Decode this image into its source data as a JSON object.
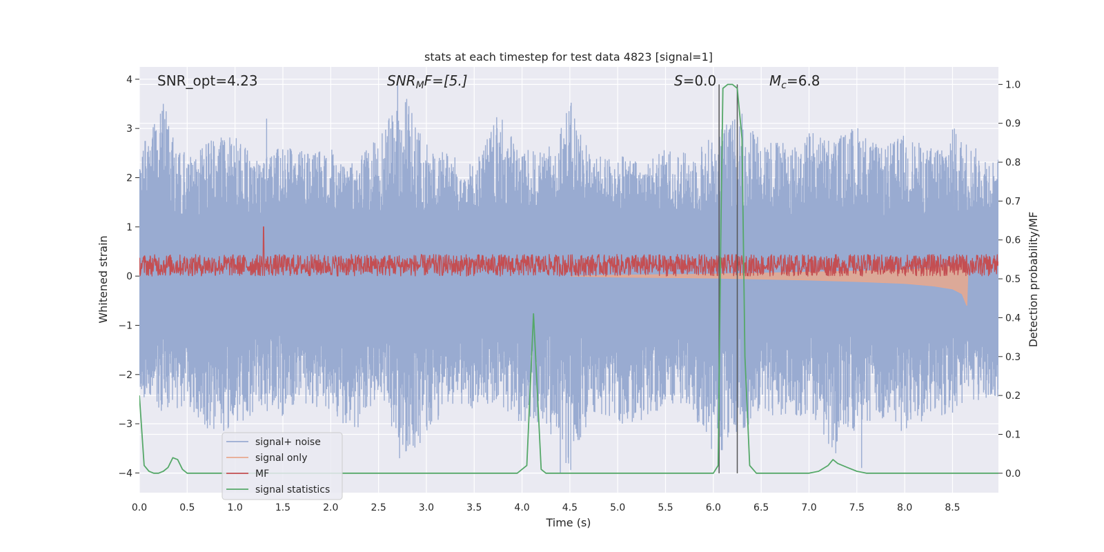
{
  "chart_data": {
    "type": "line",
    "title": "stats at each timestep for test data 4823 [signal=1]",
    "xlabel": "Time (s)",
    "ylabel": "Whitened strain",
    "ylabel_right": "Detection probability/MF",
    "xlim": [
      0.0,
      8.98
    ],
    "ylim": [
      -4.4,
      4.25
    ],
    "ylim_right": [
      -0.05,
      1.045
    ],
    "xticks": [
      "0.0",
      "0.5",
      "1.0",
      "1.5",
      "2.0",
      "2.5",
      "3.0",
      "3.5",
      "4.0",
      "4.5",
      "5.0",
      "5.5",
      "6.0",
      "6.5",
      "7.0",
      "7.5",
      "8.0",
      "8.5"
    ],
    "yticks": [
      "4",
      "3",
      "2",
      "1",
      "0",
      "−1",
      "−2",
      "−3",
      "−4"
    ],
    "yticks_right": [
      "1.0",
      "0.9",
      "0.8",
      "0.7",
      "0.6",
      "0.5",
      "0.4",
      "0.3",
      "0.2",
      "0.1",
      "0.0"
    ],
    "grid": true,
    "legend_position": "lower-left",
    "annotations": {
      "snr_opt": "SNR_opt=4.23",
      "snr_mf_base": "SNR",
      "snr_mf_sub": "M",
      "snr_mf_rest": "F=[5.]",
      "s_italic": "S",
      "s_rest": "=0.0",
      "mc_italic": "M",
      "mc_sub": "c",
      "mc_rest": "=6.8"
    },
    "vlines": [
      6.06,
      6.25
    ],
    "series": [
      {
        "name": "signal+ noise",
        "color": "#99abd1",
        "envelope_x": [
          0.0,
          0.25,
          0.5,
          0.75,
          1.0,
          1.25,
          1.5,
          1.75,
          2.0,
          2.25,
          2.5,
          2.75,
          3.0,
          3.25,
          3.5,
          3.75,
          4.0,
          4.25,
          4.5,
          4.75,
          5.0,
          5.25,
          5.5,
          5.75,
          6.0,
          6.25,
          6.5,
          6.75,
          7.0,
          7.25,
          7.5,
          7.75,
          8.0,
          8.25,
          8.5,
          8.75,
          8.98
        ],
        "envelope_upper": [
          2.6,
          3.5,
          2.4,
          2.8,
          2.9,
          2.3,
          2.7,
          2.5,
          2.6,
          2.4,
          2.8,
          3.8,
          2.7,
          2.5,
          2.3,
          3.3,
          2.6,
          2.5,
          3.6,
          2.4,
          2.5,
          2.3,
          2.6,
          2.5,
          2.9,
          3.3,
          2.9,
          2.7,
          3.0,
          2.8,
          3.1,
          2.6,
          2.9,
          2.6,
          3.0,
          2.6,
          2.4
        ],
        "envelope_lower": [
          -2.4,
          -2.8,
          -2.6,
          -3.2,
          -3.1,
          -2.7,
          -2.9,
          -2.6,
          -2.8,
          -3.2,
          -2.4,
          -3.7,
          -3.3,
          -2.6,
          -2.7,
          -2.6,
          -3.0,
          -3.1,
          -4.0,
          -2.8,
          -3.0,
          -3.0,
          -2.6,
          -2.6,
          -3.7,
          -3.3,
          -2.7,
          -3.0,
          -2.8,
          -3.6,
          -3.1,
          -3.0,
          -3.2,
          -2.9,
          -2.8,
          -2.6,
          -2.5
        ],
        "spikes": [
          [
            0.22,
            3.3
          ],
          [
            0.25,
            3.5
          ],
          [
            0.28,
            3.35
          ],
          [
            1.33,
            3.2
          ],
          [
            2.7,
            3.9
          ],
          [
            2.72,
            -3.7
          ],
          [
            6.06,
            -4.0
          ],
          [
            6.3,
            3.3
          ],
          [
            7.28,
            -3.6
          ],
          [
            7.55,
            -3.9
          ],
          [
            8.52,
            3.0
          ],
          [
            4.4,
            -4.0
          ]
        ]
      },
      {
        "name": "signal only",
        "color": "#e8a88e",
        "x": [
          4.5,
          5.0,
          5.5,
          6.0,
          6.5,
          7.0,
          7.5,
          8.0,
          8.3,
          8.5,
          8.6,
          8.65,
          8.66
        ],
        "upper": [
          0.0,
          0.02,
          0.03,
          0.04,
          0.06,
          0.08,
          0.1,
          0.13,
          0.16,
          0.2,
          0.25,
          0.3,
          0.0
        ],
        "lower": [
          0.0,
          -0.02,
          -0.03,
          -0.04,
          -0.06,
          -0.08,
          -0.11,
          -0.15,
          -0.2,
          -0.26,
          -0.36,
          -0.6,
          0.0
        ]
      },
      {
        "name": "MF",
        "color": "#c44e52",
        "baseline": 0.22,
        "amplitude": 0.22,
        "peak": [
          1.3,
          1.0
        ]
      },
      {
        "name": "signal statistics",
        "color": "#55a868",
        "x": [
          0.0,
          0.05,
          0.1,
          0.15,
          0.2,
          0.25,
          0.3,
          0.35,
          0.4,
          0.45,
          0.5,
          0.55,
          1.0,
          2.0,
          3.0,
          3.95,
          4.05,
          4.12,
          4.2,
          4.25,
          4.3,
          4.5,
          5.0,
          5.5,
          6.0,
          6.05,
          6.08,
          6.1,
          6.15,
          6.2,
          6.25,
          6.3,
          6.33,
          6.38,
          6.45,
          6.5,
          7.0,
          7.1,
          7.2,
          7.25,
          7.3,
          7.4,
          7.5,
          7.6,
          7.8,
          8.0,
          8.98
        ],
        "y": [
          0.2,
          0.02,
          0.005,
          0.0,
          0.0,
          0.005,
          0.015,
          0.04,
          0.035,
          0.01,
          0.0,
          0.0,
          0.0,
          0.0,
          0.0,
          0.0,
          0.02,
          0.41,
          0.01,
          0.0,
          0.0,
          0.0,
          0.0,
          0.0,
          0.0,
          0.02,
          0.65,
          0.99,
          1.0,
          1.0,
          0.99,
          0.86,
          0.3,
          0.02,
          0.0,
          0.0,
          0.0,
          0.005,
          0.02,
          0.035,
          0.025,
          0.015,
          0.005,
          0.0,
          0.0,
          0.0,
          0.0
        ]
      }
    ]
  }
}
